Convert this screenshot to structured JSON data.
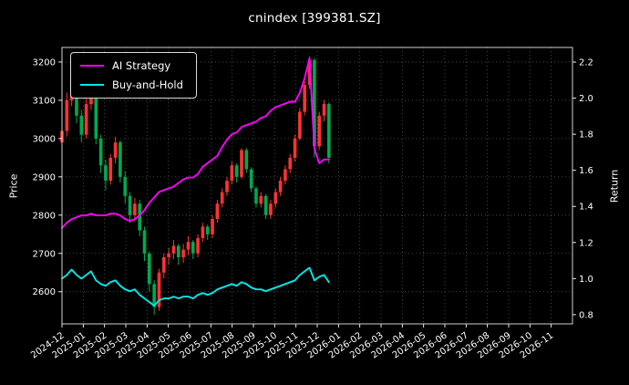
{
  "chart_data": {
    "type": "candlestick+line",
    "title": "cnindex [399381.SZ]",
    "ylabel_left": "Price",
    "ylabel_right": "Return",
    "legend_position": "upper left",
    "grid": "dotted",
    "background": "#000000",
    "text_color": "#ffffff",
    "colors": {
      "up": "#ff3333",
      "down": "#00a94f",
      "ai_strategy": "#ff00ff",
      "buy_and_hold": "#00e8e8",
      "grid": "#565656",
      "spine": "#cfcfcf"
    },
    "x_tick_labels": [
      "2024-12",
      "2025-01",
      "2025-02",
      "2025-03",
      "2025-04",
      "2025-05",
      "2025-06",
      "2025-07",
      "2025-08",
      "2025-09",
      "2025-10",
      "2025-11",
      "2025-12",
      "2026-01",
      "2026-02",
      "2026-03",
      "2026-04",
      "2026-05",
      "2026-06",
      "2026-07",
      "2026-08",
      "2026-09",
      "2026-10",
      "2026-11"
    ],
    "x_span_months": 12.55,
    "price_axis": {
      "label": "Price",
      "ticks": [
        2600,
        2700,
        2800,
        2900,
        3000,
        3100,
        3200
      ],
      "min": 2516,
      "max": 3238
    },
    "return_axis": {
      "label": "Return",
      "ticks": [
        0.8,
        1.0,
        1.2,
        1.4,
        1.6,
        1.8,
        2.0,
        2.2
      ],
      "min": 0.749,
      "max": 2.281
    },
    "candles_ohlc": [
      [
        2990,
        3045,
        2960,
        3020
      ],
      [
        3020,
        3120,
        3005,
        3100
      ],
      [
        3100,
        3180,
        3085,
        3160
      ],
      [
        3160,
        3170,
        3040,
        3060
      ],
      [
        3060,
        3075,
        2990,
        3010
      ],
      [
        3010,
        3105,
        3000,
        3090
      ],
      [
        3090,
        3145,
        3075,
        3130
      ],
      [
        3130,
        3135,
        2985,
        3000
      ],
      [
        3000,
        3010,
        2910,
        2930
      ],
      [
        2930,
        2945,
        2865,
        2890
      ],
      [
        2890,
        2960,
        2880,
        2950
      ],
      [
        2950,
        3005,
        2935,
        2990
      ],
      [
        2990,
        2995,
        2885,
        2900
      ],
      [
        2900,
        2915,
        2830,
        2850
      ],
      [
        2850,
        2860,
        2780,
        2800
      ],
      [
        2800,
        2845,
        2785,
        2830
      ],
      [
        2830,
        2840,
        2745,
        2760
      ],
      [
        2760,
        2770,
        2680,
        2700
      ],
      [
        2700,
        2705,
        2600,
        2620
      ],
      [
        2620,
        2630,
        2540,
        2560
      ],
      [
        2560,
        2660,
        2550,
        2650
      ],
      [
        2650,
        2700,
        2635,
        2690
      ],
      [
        2690,
        2715,
        2670,
        2700
      ],
      [
        2700,
        2735,
        2685,
        2720
      ],
      [
        2720,
        2725,
        2670,
        2690
      ],
      [
        2690,
        2725,
        2675,
        2710
      ],
      [
        2710,
        2745,
        2695,
        2730
      ],
      [
        2730,
        2735,
        2685,
        2700
      ],
      [
        2700,
        2750,
        2690,
        2740
      ],
      [
        2740,
        2780,
        2730,
        2770
      ],
      [
        2770,
        2775,
        2735,
        2750
      ],
      [
        2750,
        2800,
        2740,
        2790
      ],
      [
        2790,
        2840,
        2780,
        2830
      ],
      [
        2830,
        2870,
        2820,
        2860
      ],
      [
        2860,
        2900,
        2850,
        2890
      ],
      [
        2890,
        2940,
        2880,
        2930
      ],
      [
        2930,
        2935,
        2885,
        2900
      ],
      [
        2900,
        2975,
        2895,
        2970
      ],
      [
        2970,
        2975,
        2910,
        2920
      ],
      [
        2920,
        2925,
        2860,
        2870
      ],
      [
        2870,
        2875,
        2820,
        2830
      ],
      [
        2830,
        2860,
        2820,
        2850
      ],
      [
        2850,
        2855,
        2790,
        2800
      ],
      [
        2800,
        2840,
        2790,
        2830
      ],
      [
        2830,
        2870,
        2820,
        2860
      ],
      [
        2860,
        2900,
        2850,
        2890
      ],
      [
        2890,
        2930,
        2880,
        2920
      ],
      [
        2920,
        2960,
        2910,
        2950
      ],
      [
        2950,
        3010,
        2940,
        3000
      ],
      [
        3000,
        3080,
        2995,
        3070
      ],
      [
        3070,
        3150,
        3060,
        3140
      ],
      [
        3140,
        3215,
        3130,
        3205
      ],
      [
        3205,
        3210,
        2950,
        2980
      ],
      [
        2980,
        3070,
        2970,
        3060
      ],
      [
        3060,
        3100,
        3045,
        3090
      ],
      [
        3090,
        3095,
        2935,
        2950
      ]
    ],
    "series": [
      {
        "name": "AI Strategy",
        "axis": "return",
        "color_key": "ai_strategy",
        "values": [
          1.28,
          1.31,
          1.33,
          1.34,
          1.35,
          1.35,
          1.36,
          1.35,
          1.35,
          1.35,
          1.36,
          1.36,
          1.35,
          1.33,
          1.32,
          1.33,
          1.35,
          1.38,
          1.42,
          1.45,
          1.48,
          1.49,
          1.5,
          1.51,
          1.53,
          1.55,
          1.56,
          1.56,
          1.58,
          1.62,
          1.64,
          1.66,
          1.68,
          1.73,
          1.77,
          1.8,
          1.81,
          1.84,
          1.85,
          1.86,
          1.87,
          1.89,
          1.9,
          1.93,
          1.95,
          1.96,
          1.97,
          1.98,
          1.98,
          2.03,
          2.11,
          2.22,
          1.72,
          1.64,
          1.66,
          1.66
        ]
      },
      {
        "name": "Buy-and-Hold",
        "axis": "return",
        "color_key": "buy_and_hold",
        "values": [
          1.0,
          1.02,
          1.05,
          1.02,
          1.0,
          1.02,
          1.04,
          0.99,
          0.97,
          0.96,
          0.98,
          0.99,
          0.96,
          0.94,
          0.93,
          0.94,
          0.91,
          0.89,
          0.87,
          0.85,
          0.88,
          0.89,
          0.89,
          0.9,
          0.89,
          0.9,
          0.9,
          0.89,
          0.91,
          0.92,
          0.91,
          0.92,
          0.94,
          0.95,
          0.96,
          0.97,
          0.96,
          0.98,
          0.97,
          0.95,
          0.94,
          0.94,
          0.93,
          0.94,
          0.95,
          0.96,
          0.97,
          0.98,
          0.99,
          1.02,
          1.04,
          1.06,
          0.99,
          1.01,
          1.02,
          0.98
        ]
      }
    ]
  }
}
